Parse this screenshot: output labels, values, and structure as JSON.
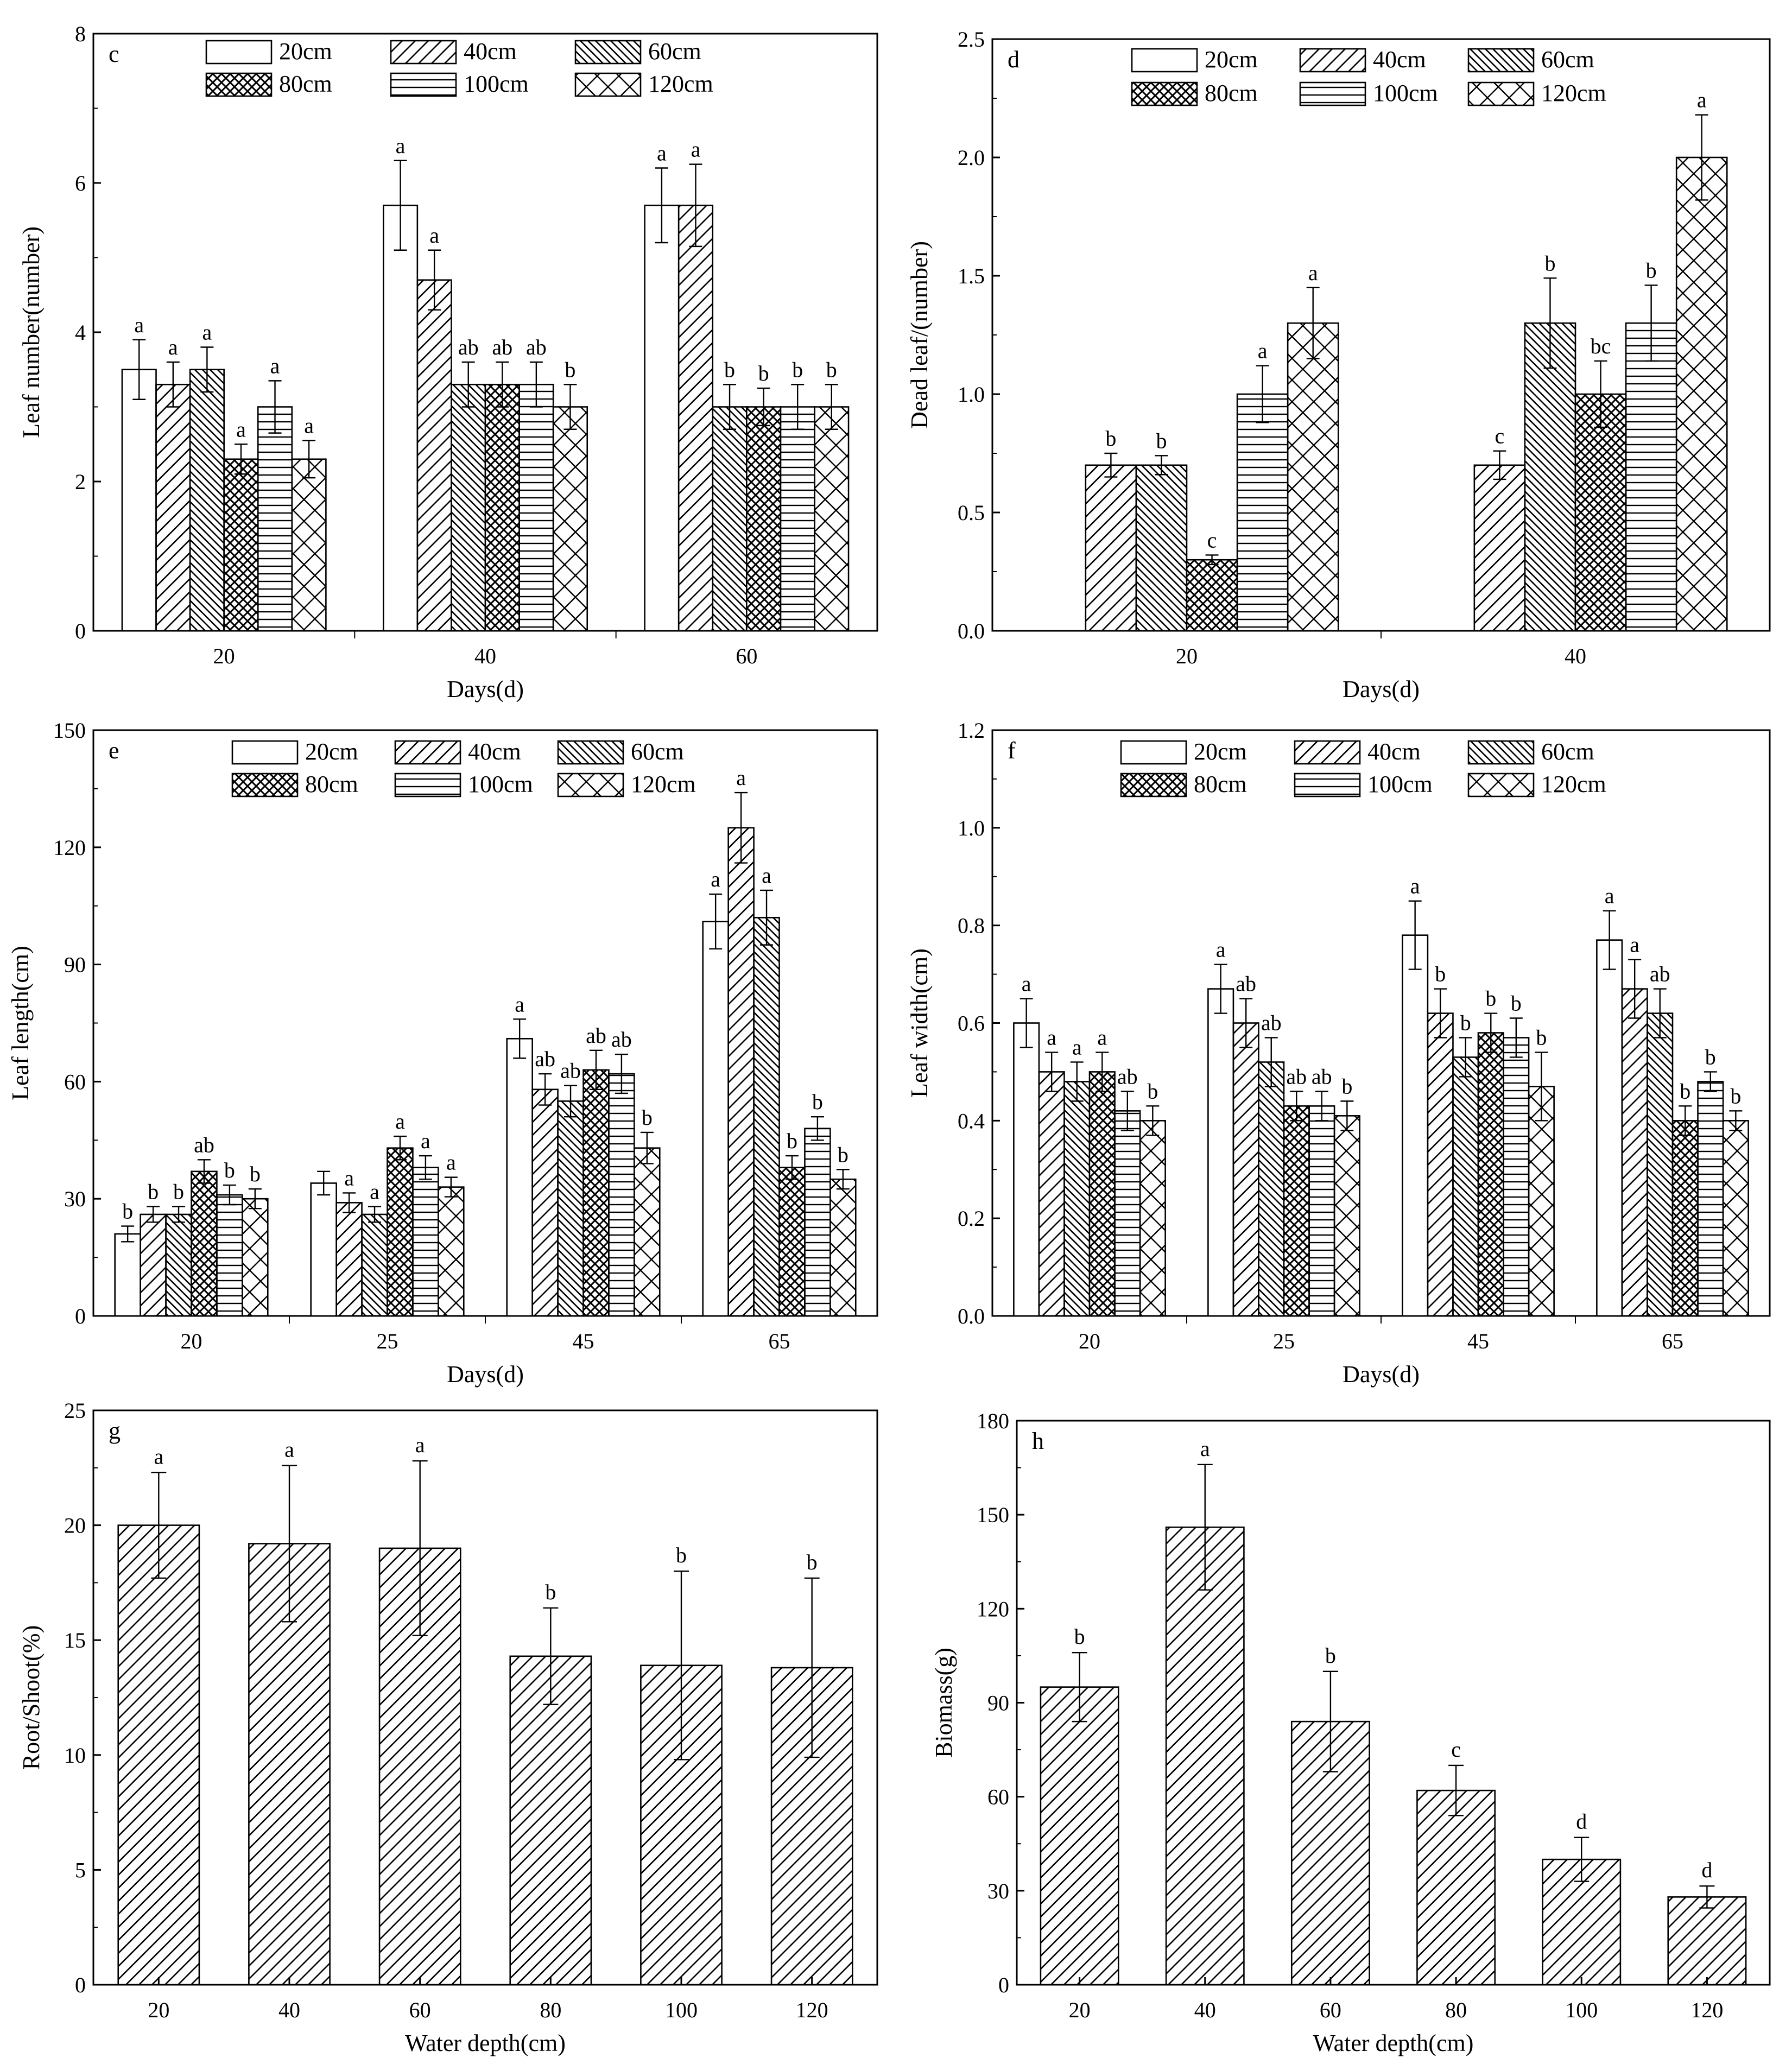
{
  "figure": {
    "legend_entries": [
      "20cm",
      "40cm",
      "60cm",
      "80cm",
      "100cm",
      "120cm"
    ]
  },
  "chart_data": [
    {
      "id": "c",
      "panel_label": "c",
      "type": "bar",
      "xlabel": "Days(d)",
      "ylabel": "Leaf number(number)",
      "ylim": [
        0,
        8
      ],
      "yticks": [
        0,
        2,
        4,
        6,
        8
      ],
      "ytick_labels": [
        "0",
        "2",
        "4",
        "6",
        "8"
      ],
      "categories": [
        "20",
        "40",
        "60"
      ],
      "series": [
        {
          "name": "20cm",
          "values": [
            3.5,
            5.7,
            5.7
          ],
          "errors": [
            0.4,
            0.6,
            0.5
          ],
          "labels": [
            "a",
            "a",
            "a"
          ]
        },
        {
          "name": "40cm",
          "values": [
            3.3,
            4.7,
            5.7
          ],
          "errors": [
            0.3,
            0.4,
            0.55
          ],
          "labels": [
            "a",
            "a",
            "a"
          ]
        },
        {
          "name": "60cm",
          "values": [
            3.5,
            3.3,
            3.0
          ],
          "errors": [
            0.3,
            0.3,
            0.3
          ],
          "labels": [
            "a",
            "ab",
            "b"
          ]
        },
        {
          "name": "80cm",
          "values": [
            2.3,
            3.3,
            3.0
          ],
          "errors": [
            0.2,
            0.3,
            0.25
          ],
          "labels": [
            "a",
            "ab",
            "b"
          ]
        },
        {
          "name": "100cm",
          "values": [
            3.0,
            3.3,
            3.0
          ],
          "errors": [
            0.35,
            0.3,
            0.3
          ],
          "labels": [
            "a",
            "ab",
            "b"
          ]
        },
        {
          "name": "120cm",
          "values": [
            2.3,
            3.0,
            3.0
          ],
          "errors": [
            0.25,
            0.3,
            0.3
          ],
          "labels": [
            "a",
            "b",
            "b"
          ]
        }
      ]
    },
    {
      "id": "d",
      "panel_label": "d",
      "type": "bar",
      "xlabel": "Days(d)",
      "ylabel": "Dead leaf/(number)",
      "ylim": [
        0,
        2.5
      ],
      "yticks": [
        0,
        0.5,
        1.0,
        1.5,
        2.0,
        2.5
      ],
      "ytick_labels": [
        "0.0",
        "0.5",
        "1.0",
        "1.5",
        "2.0",
        "2.5"
      ],
      "categories": [
        "20",
        "40"
      ],
      "series": [
        {
          "name": "20cm",
          "values": [
            0,
            0
          ],
          "errors": [
            0,
            0
          ],
          "labels": [
            "",
            ""
          ]
        },
        {
          "name": "40cm",
          "values": [
            0.7,
            0.7
          ],
          "errors": [
            0.05,
            0.06
          ],
          "labels": [
            "b",
            "c"
          ]
        },
        {
          "name": "60cm",
          "values": [
            0.7,
            1.3
          ],
          "errors": [
            0.04,
            0.19
          ],
          "labels": [
            "b",
            "b"
          ]
        },
        {
          "name": "80cm",
          "values": [
            0.3,
            1.0
          ],
          "errors": [
            0.02,
            0.14
          ],
          "labels": [
            "c",
            "bc"
          ]
        },
        {
          "name": "100cm",
          "values": [
            1.0,
            1.3
          ],
          "errors": [
            0.12,
            0.16
          ],
          "labels": [
            "a",
            "b"
          ]
        },
        {
          "name": "120cm",
          "values": [
            1.3,
            2.0
          ],
          "errors": [
            0.15,
            0.18
          ],
          "labels": [
            "a",
            "a"
          ]
        }
      ]
    },
    {
      "id": "e",
      "panel_label": "e",
      "type": "bar",
      "xlabel": "Days(d)",
      "ylabel": "Leaf length(cm)",
      "ylim": [
        0,
        150
      ],
      "yticks": [
        0,
        30,
        60,
        90,
        120,
        150
      ],
      "ytick_labels": [
        "0",
        "30",
        "60",
        "90",
        "120",
        "150"
      ],
      "categories": [
        "20",
        "25",
        "45",
        "65"
      ],
      "series": [
        {
          "name": "20cm",
          "values": [
            21,
            34,
            71,
            101
          ],
          "errors": [
            2,
            3,
            5,
            7
          ],
          "labels": [
            "b",
            "",
            "a",
            "a"
          ]
        },
        {
          "name": "40cm",
          "values": [
            26,
            29,
            58,
            125
          ],
          "errors": [
            2,
            2.5,
            4,
            9
          ],
          "labels": [
            "b",
            "a",
            "ab",
            "a"
          ]
        },
        {
          "name": "60cm",
          "values": [
            26,
            26,
            55,
            102
          ],
          "errors": [
            2,
            2,
            4,
            7
          ],
          "labels": [
            "b",
            "a",
            "ab",
            "a"
          ]
        },
        {
          "name": "80cm",
          "values": [
            37,
            43,
            63,
            38
          ],
          "errors": [
            3,
            3,
            5,
            3
          ],
          "labels": [
            "ab",
            "a",
            "ab",
            "b"
          ]
        },
        {
          "name": "100cm",
          "values": [
            31,
            38,
            62,
            48
          ],
          "errors": [
            2.5,
            3,
            5,
            3
          ],
          "labels": [
            "b",
            "a",
            "ab",
            "b"
          ]
        },
        {
          "name": "120cm",
          "values": [
            30,
            33,
            43,
            35
          ],
          "errors": [
            2.5,
            2.5,
            4,
            2.5
          ],
          "labels": [
            "b",
            "a",
            "b",
            "b"
          ]
        }
      ]
    },
    {
      "id": "f",
      "panel_label": "f",
      "type": "bar",
      "xlabel": "Days(d)",
      "ylabel": "Leaf width(cm)",
      "ylim": [
        0,
        1.2
      ],
      "yticks": [
        0,
        0.2,
        0.4,
        0.6,
        0.8,
        1.0,
        1.2
      ],
      "ytick_labels": [
        "0.0",
        "0.2",
        "0.4",
        "0.6",
        "0.8",
        "1.0",
        "1.2"
      ],
      "categories": [
        "20",
        "25",
        "45",
        "65"
      ],
      "series": [
        {
          "name": "20cm",
          "values": [
            0.6,
            0.67,
            0.78,
            0.77
          ],
          "errors": [
            0.05,
            0.05,
            0.07,
            0.06
          ],
          "labels": [
            "a",
            "a",
            "a",
            "a"
          ]
        },
        {
          "name": "40cm",
          "values": [
            0.5,
            0.6,
            0.62,
            0.67
          ],
          "errors": [
            0.04,
            0.05,
            0.05,
            0.06
          ],
          "labels": [
            "a",
            "ab",
            "b",
            "a"
          ]
        },
        {
          "name": "60cm",
          "values": [
            0.48,
            0.52,
            0.53,
            0.62
          ],
          "errors": [
            0.04,
            0.05,
            0.04,
            0.05
          ],
          "labels": [
            "a",
            "ab",
            "b",
            "ab"
          ]
        },
        {
          "name": "80cm",
          "values": [
            0.5,
            0.43,
            0.58,
            0.4
          ],
          "errors": [
            0.04,
            0.03,
            0.04,
            0.03
          ],
          "labels": [
            "a",
            "ab",
            "b",
            "b"
          ]
        },
        {
          "name": "100cm",
          "values": [
            0.42,
            0.43,
            0.57,
            0.48
          ],
          "errors": [
            0.04,
            0.03,
            0.04,
            0.02
          ],
          "labels": [
            "ab",
            "ab",
            "b",
            "b"
          ]
        },
        {
          "name": "120cm",
          "values": [
            0.4,
            0.41,
            0.47,
            0.4
          ],
          "errors": [
            0.03,
            0.03,
            0.07,
            0.02
          ],
          "labels": [
            "b",
            "b",
            "b",
            "b"
          ]
        }
      ]
    },
    {
      "id": "g",
      "panel_label": "g",
      "type": "bar",
      "xlabel": "Water depth(cm)",
      "ylabel": "Root/Shoot(%)",
      "ylim": [
        0,
        25
      ],
      "yticks": [
        0,
        5,
        10,
        15,
        20,
        25
      ],
      "ytick_labels": [
        "0",
        "5",
        "10",
        "15",
        "20",
        "25"
      ],
      "categories": [
        "20",
        "40",
        "60",
        "80",
        "100",
        "120"
      ],
      "values": [
        20,
        19.2,
        19,
        14.3,
        13.9,
        13.8
      ],
      "errors": [
        2.3,
        3.4,
        3.8,
        2.1,
        4.1,
        3.9
      ],
      "labels": [
        "a",
        "a",
        "a",
        "b",
        "b",
        "b"
      ]
    },
    {
      "id": "h",
      "panel_label": "h",
      "type": "bar",
      "xlabel": "Water depth(cm)",
      "ylabel": "Biomass(g)",
      "ylim": [
        0,
        180
      ],
      "yticks": [
        0,
        30,
        60,
        90,
        120,
        150,
        180
      ],
      "ytick_labels": [
        "0",
        "30",
        "60",
        "90",
        "120",
        "150",
        "180"
      ],
      "categories": [
        "20",
        "40",
        "60",
        "80",
        "100",
        "120"
      ],
      "values": [
        95,
        146,
        84,
        62,
        40,
        28
      ],
      "errors": [
        11,
        20,
        16,
        8,
        7,
        3.5
      ],
      "labels": [
        "b",
        "a",
        "b",
        "c",
        "d",
        "d"
      ]
    }
  ]
}
